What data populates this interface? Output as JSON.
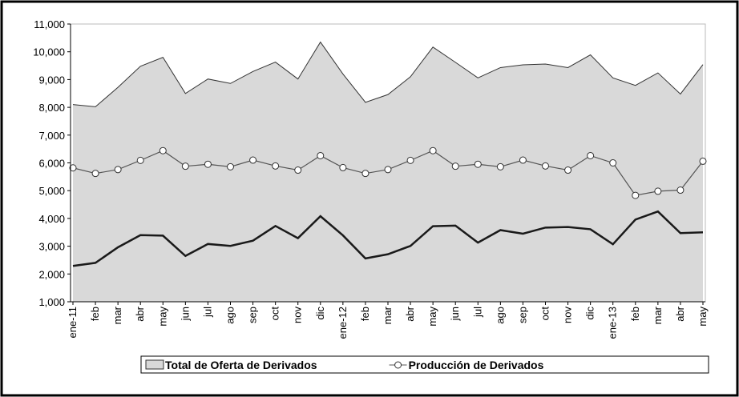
{
  "chart_data": {
    "type": "line",
    "categories": [
      "ene-11",
      "feb",
      "mar",
      "abr",
      "may",
      "jun",
      "jul",
      "ago",
      "sep",
      "oct",
      "nov",
      "dic",
      "ene-12",
      "feb",
      "mar",
      "abr",
      "may",
      "jun",
      "jul",
      "ago",
      "sep",
      "oct",
      "nov",
      "dic",
      "ene-13",
      "feb",
      "mar",
      "abr",
      "may"
    ],
    "series": [
      {
        "name": "Total de Oferta de Derivados",
        "kind": "area",
        "color": "#d9d9d9",
        "values": [
          8100,
          8020,
          8720,
          9480,
          9800,
          8500,
          9020,
          8860,
          9290,
          9630,
          9020,
          10350,
          9200,
          8180,
          8460,
          9100,
          10170,
          9620,
          9060,
          9430,
          9530,
          9560,
          9430,
          9890,
          9060,
          8790,
          9240,
          8480,
          9540
        ]
      },
      {
        "name": "Producción de Derivados",
        "kind": "line",
        "marker": true,
        "color": "#555555",
        "values": [
          5820,
          5620,
          5760,
          6090,
          6440,
          5880,
          5950,
          5860,
          6100,
          5890,
          5740,
          6260,
          5830,
          5620,
          5760,
          6090,
          6440,
          5880,
          5950,
          5860,
          6100,
          5890,
          5740,
          6260,
          6000,
          4830,
          4980,
          5020,
          6060
        ]
      },
      {
        "kind": "line",
        "color": "#1a1a1a",
        "values": [
          2290,
          2400,
          2960,
          3400,
          3380,
          2650,
          3080,
          3010,
          3200,
          3730,
          3290,
          4080,
          3390,
          2560,
          2710,
          3010,
          3720,
          3740,
          3130,
          3580,
          3450,
          3670,
          3690,
          3610,
          3070,
          3960,
          4250,
          3470,
          3500
        ]
      }
    ],
    "ylim": [
      1000,
      11000
    ],
    "yticks": [
      {
        "value": 1000,
        "label": "1,000"
      },
      {
        "value": 2000,
        "label": "2,000"
      },
      {
        "value": 3000,
        "label": "3,000"
      },
      {
        "value": 4000,
        "label": "4,000"
      },
      {
        "value": 5000,
        "label": "5,000"
      },
      {
        "value": 6000,
        "label": "6,000"
      },
      {
        "value": 7000,
        "label": "7,000"
      },
      {
        "value": 8000,
        "label": "8,000"
      },
      {
        "value": 9000,
        "label": "9,000"
      },
      {
        "value": 10000,
        "label": "10,000"
      },
      {
        "value": 11000,
        "label": "11,000"
      }
    ],
    "legend": "bottom"
  }
}
